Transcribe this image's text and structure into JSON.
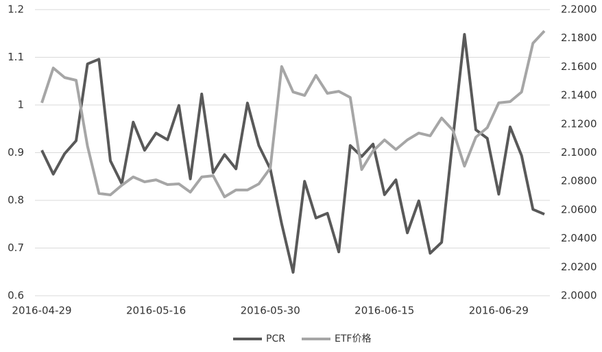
{
  "chart_data": {
    "type": "line",
    "categories": [
      "2016-04-29",
      null,
      null,
      null,
      null,
      null,
      null,
      null,
      null,
      null,
      "2016-05-16",
      null,
      null,
      null,
      null,
      null,
      null,
      null,
      null,
      null,
      "2016-05-30",
      null,
      null,
      null,
      null,
      null,
      null,
      null,
      null,
      null,
      "2016-06-15",
      null,
      null,
      null,
      null,
      null,
      null,
      null,
      null,
      null,
      "2016-06-29",
      null,
      null,
      null,
      null
    ],
    "series": [
      {
        "name": "PCR",
        "color": "#595959",
        "values": [
          0.905,
          0.855,
          0.898,
          0.925,
          1.086,
          1.096,
          0.883,
          0.835,
          0.964,
          0.905,
          0.941,
          0.927,
          0.999,
          0.845,
          1.023,
          0.858,
          0.896,
          0.866,
          1.004,
          0.915,
          0.866,
          0.751,
          0.649,
          0.84,
          0.763,
          0.773,
          0.692,
          0.915,
          0.892,
          0.918,
          0.812,
          0.843,
          0.732,
          0.799,
          0.689,
          0.712,
          0.932,
          1.148,
          0.948,
          0.93,
          0.813,
          0.954,
          0.894,
          0.781,
          0.771
        ]
      },
      {
        "name": "ETF价格",
        "color": "#a6a6a6",
        "axis": "y2",
        "values": [
          2.1348,
          2.1592,
          2.1525,
          2.1506,
          2.1046,
          2.0715,
          2.0705,
          2.0772,
          2.083,
          2.0796,
          2.081,
          2.0777,
          2.0782,
          2.0724,
          2.083,
          2.0839,
          2.0691,
          2.0739,
          2.0739,
          2.0782,
          2.0892,
          2.1602,
          2.1424,
          2.14,
          2.154,
          2.1415,
          2.1429,
          2.1386,
          2.0882,
          2.1012,
          2.1089,
          2.1022,
          2.1089,
          2.1137,
          2.1118,
          2.1242,
          2.1156,
          2.0906,
          2.1108,
          2.1175,
          2.1348,
          2.1357,
          2.1424,
          2.1765,
          2.1851
        ]
      }
    ],
    "ylim": [
      0.6,
      1.2
    ],
    "yticks": [
      0.6,
      0.7,
      0.8,
      0.9,
      1,
      1.1,
      1.2
    ],
    "y2lim": [
      2.0,
      2.2
    ],
    "y2ticks": [
      {
        "value": 2.0,
        "label": "2.0000"
      },
      {
        "value": 2.02,
        "label": "2.0200"
      },
      {
        "value": 2.04,
        "label": "2.0400"
      },
      {
        "value": 2.06,
        "label": "2.0600"
      },
      {
        "value": 2.08,
        "label": "2.0800"
      },
      {
        "value": 2.1,
        "label": "2.1000"
      },
      {
        "value": 2.12,
        "label": "2.1200"
      },
      {
        "value": 2.14,
        "label": "2.1400"
      },
      {
        "value": 2.16,
        "label": "2.1600"
      },
      {
        "value": 2.18,
        "label": "2.1800"
      },
      {
        "value": 2.2,
        "label": "2.2000"
      }
    ],
    "grid": true,
    "legend": "bottom"
  }
}
